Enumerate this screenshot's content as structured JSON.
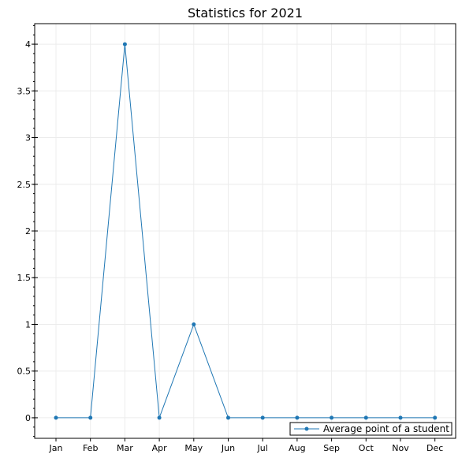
{
  "chart_data": {
    "type": "line",
    "title": "Statistics for 2021",
    "xlabel": "",
    "ylabel": "",
    "categories": [
      "Jan",
      "Feb",
      "Mar",
      "Apr",
      "May",
      "Jun",
      "Jul",
      "Aug",
      "Sep",
      "Oct",
      "Nov",
      "Dec"
    ],
    "series": [
      {
        "name": "Average point of a student",
        "values": [
          0,
          0,
          4,
          0,
          1,
          0,
          0,
          0,
          0,
          0,
          0,
          0
        ]
      }
    ],
    "ylim": [
      -0.22,
      4.22
    ],
    "yticks": [
      0,
      0.5,
      1,
      1.5,
      2,
      2.5,
      3,
      3.5,
      4
    ],
    "ytick_labels": [
      "0",
      "0.5",
      "1",
      "1.5",
      "2",
      "2.5",
      "3",
      "3.5",
      "4"
    ],
    "grid": true,
    "legend_position": "bottom-right",
    "colors": {
      "series": "#1f77b4",
      "grid": "#ececec",
      "axis": "#000000"
    }
  }
}
